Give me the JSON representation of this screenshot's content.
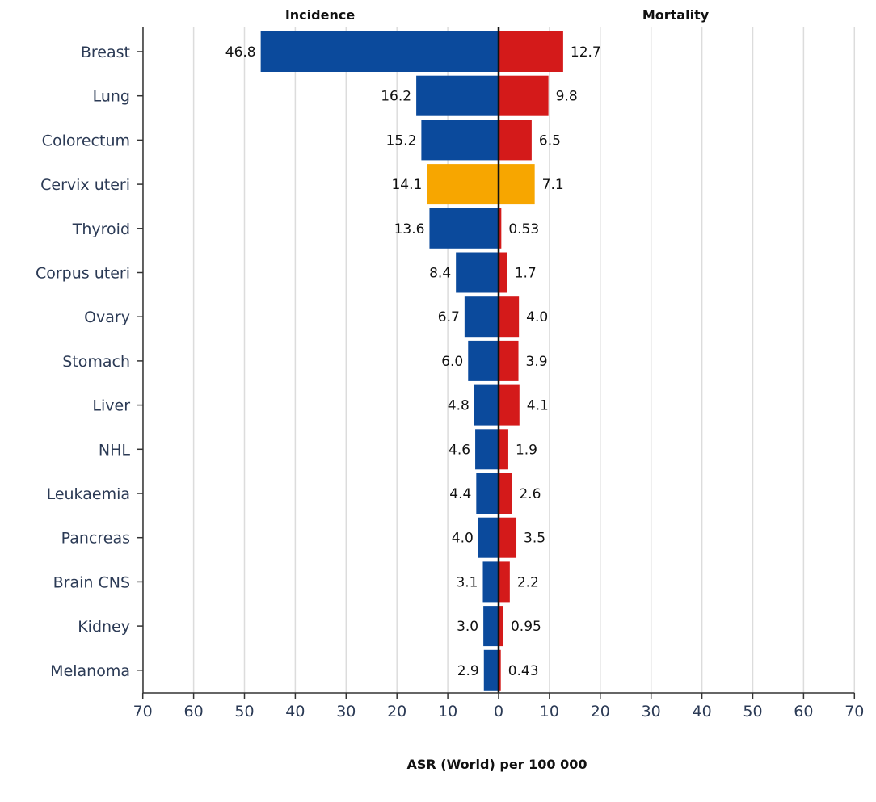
{
  "chart_data": {
    "type": "bar",
    "orientation": "horizontal",
    "layout": "diverging",
    "left_heading": "Incidence",
    "right_heading": "Mortality",
    "xlabel": "ASR (World) per 100 000",
    "ylabel": "",
    "xlim": [
      0,
      70
    ],
    "x_ticks": [
      "70",
      "60",
      "50",
      "40",
      "30",
      "20",
      "10",
      "0",
      "10",
      "20",
      "30",
      "40",
      "50",
      "60",
      "70"
    ],
    "grid": "vertical",
    "categories": [
      "Breast",
      "Lung",
      "Colorectum",
      "Cervix uteri",
      "Thyroid",
      "Corpus uteri",
      "Ovary",
      "Stomach",
      "Liver",
      "NHL",
      "Leukaemia",
      "Pancreas",
      "Brain CNS",
      "Kidney",
      "Melanoma"
    ],
    "series": [
      {
        "side": "left",
        "values": [
          46.8,
          16.2,
          15.2,
          14.1,
          13.6,
          8.4,
          6.7,
          6.0,
          4.8,
          4.6,
          4.4,
          4.0,
          3.1,
          3.0,
          2.9
        ],
        "labels": [
          "46.8",
          "16.2",
          "15.2",
          "14.1",
          "13.6",
          "8.4",
          "6.7",
          "6.0",
          "4.8",
          "4.6",
          "4.4",
          "4.0",
          "3.1",
          "3.0",
          "2.9"
        ],
        "color": "#0b4a9c"
      },
      {
        "side": "right",
        "values": [
          12.7,
          9.8,
          6.5,
          7.1,
          0.53,
          1.7,
          4.0,
          3.9,
          4.1,
          1.9,
          2.6,
          3.5,
          2.2,
          0.95,
          0.43
        ],
        "labels": [
          "12.7",
          "9.8",
          "6.5",
          "7.1",
          "0.53",
          "1.7",
          "4.0",
          "3.9",
          "4.1",
          "1.9",
          "2.6",
          "3.5",
          "2.2",
          "0.95",
          "0.43"
        ],
        "color": "#d41a1a"
      }
    ],
    "highlight": {
      "category": "Cervix uteri",
      "color": "#f7a600"
    }
  }
}
